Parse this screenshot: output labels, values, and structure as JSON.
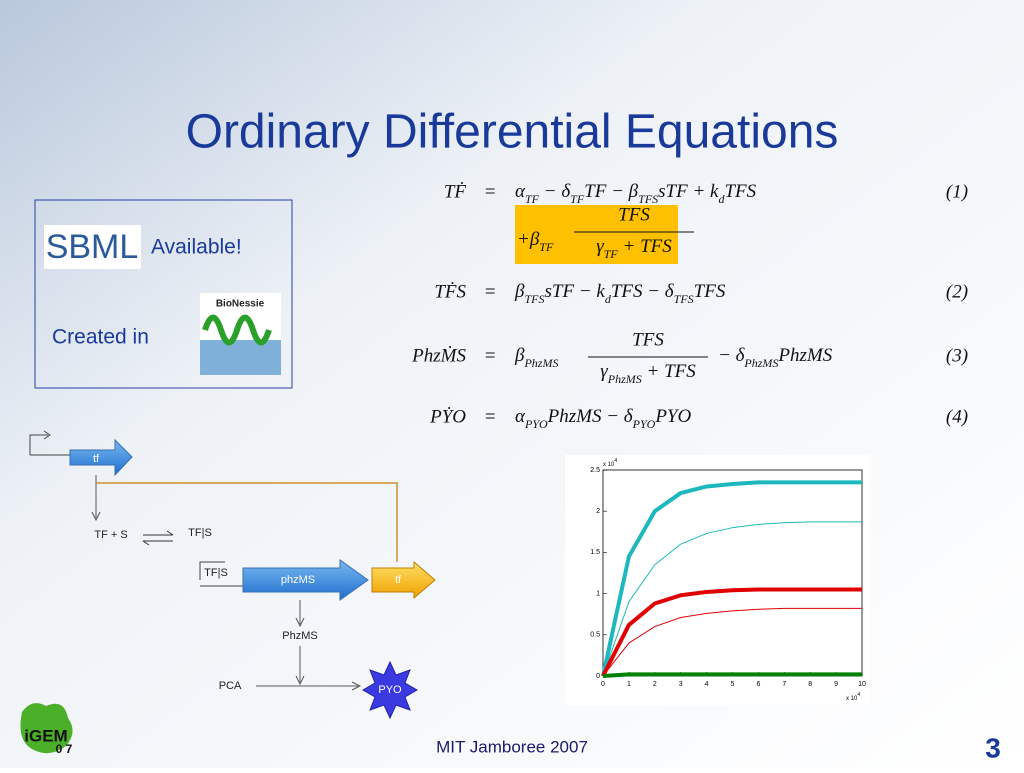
{
  "title": "Ordinary Differential Equations",
  "info_box": {
    "sbml_logo": "SBML",
    "available": "Available!",
    "created_in": "Created in",
    "bionessie_logo": "BioNessie"
  },
  "equations": [
    {
      "lhs": "TḞ",
      "rhs": [
        "α",
        "TF",
        " − δ",
        "TF",
        "TF − β",
        "TFS",
        "sTF + k",
        "d",
        "TFS"
      ],
      "number": "(1)",
      "continuation": {
        "prefix": [
          "+β",
          "TF"
        ],
        "numerator": "TFS",
        "denominator": [
          "γ",
          "TF",
          " + TFS"
        ]
      }
    },
    {
      "lhs": "TḞS",
      "rhs": [
        "β",
        "TFS",
        "sTF − k",
        "d",
        "TFS − δ",
        "TFS",
        "TFS"
      ],
      "number": "(2)"
    },
    {
      "lhs": "PhzṀS",
      "rhs": [
        "β",
        "PhzMS"
      ],
      "numerator": "TFS",
      "denominator": [
        "γ",
        "PhzMS",
        " + TFS"
      ],
      "rhs_after": [
        " − δ",
        "PhzMS",
        "PhzMS"
      ],
      "number": "(3)"
    },
    {
      "lhs": "PẎO",
      "rhs": [
        "α",
        "PYO",
        "PhzMS − δ",
        "PYO",
        "PYO"
      ],
      "number": "(4)"
    }
  ],
  "diagram": {
    "tf_top": "tf",
    "tf_s": "TF + S",
    "tfs_complex": "TF|S",
    "tfs_promoter": "TF|S",
    "phzms_gene": "phzMS",
    "tf_gene": "tf",
    "phzms_protein": "PhzMS",
    "pca": "PCA",
    "pyo": "PYO"
  },
  "chart_data": {
    "type": "line",
    "x": [
      0,
      1,
      2,
      3,
      4,
      5,
      6,
      7,
      8,
      9,
      10
    ],
    "series": [
      {
        "color": "#1cb8bd",
        "line_width": 4,
        "values": [
          0,
          1.45,
          2.0,
          2.22,
          2.3,
          2.33,
          2.35,
          2.35,
          2.35,
          2.35,
          2.35
        ]
      },
      {
        "color": "#1cb8bd",
        "line_width": 1,
        "values": [
          0,
          0.9,
          1.35,
          1.6,
          1.73,
          1.8,
          1.84,
          1.86,
          1.87,
          1.87,
          1.87
        ]
      },
      {
        "color": "#e00000",
        "line_width": 4,
        "values": [
          0,
          0.62,
          0.88,
          0.98,
          1.02,
          1.04,
          1.05,
          1.05,
          1.05,
          1.05,
          1.05
        ]
      },
      {
        "color": "#e00000",
        "line_width": 1,
        "values": [
          0,
          0.4,
          0.6,
          0.71,
          0.76,
          0.79,
          0.81,
          0.82,
          0.82,
          0.82,
          0.82
        ]
      },
      {
        "color": "#008000",
        "line_width": 4,
        "values": [
          0,
          0.02,
          0.02,
          0.02,
          0.02,
          0.02,
          0.02,
          0.02,
          0.02,
          0.02,
          0.02
        ]
      }
    ],
    "xlim": [
      0,
      10
    ],
    "xticks": [
      0,
      1,
      2,
      3,
      4,
      5,
      6,
      7,
      8,
      9,
      10
    ],
    "ylim": [
      0,
      2.5
    ],
    "yticks": [
      0,
      0.5,
      1,
      1.5,
      2,
      2.5
    ],
    "x_multiplier": {
      "base": "x 10",
      "exp": "4"
    },
    "y_multiplier": {
      "base": "x 10",
      "exp": "4"
    }
  },
  "footer": {
    "event": "MIT Jamboree 2007",
    "page": "3",
    "igem_logo": "iGEM",
    "igem_year": "0 7"
  }
}
